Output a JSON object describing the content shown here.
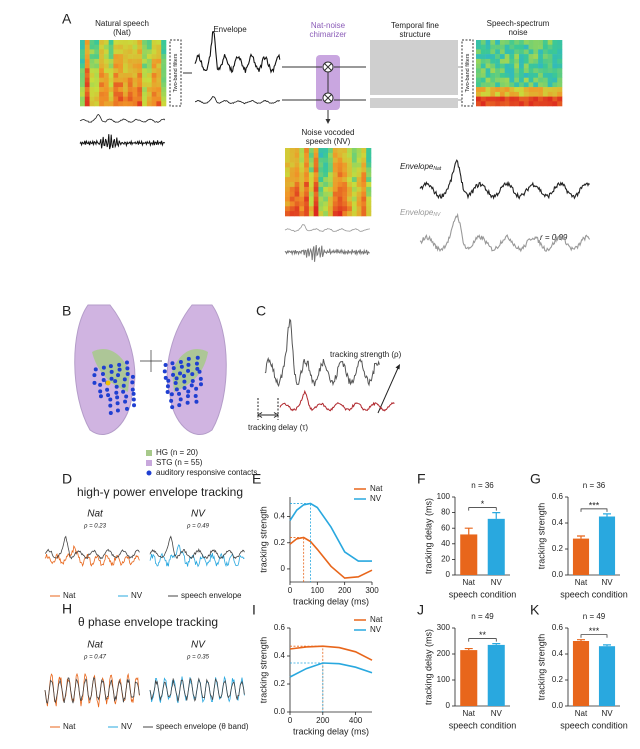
{
  "figure": {
    "A": {
      "label": "A",
      "nat_title": [
        "Natural speech",
        "(Nat)"
      ],
      "envelope_title": "Envelope",
      "chimerizer": [
        "Nat-noise",
        "chimarizer"
      ],
      "tfs_title": [
        "Temporal fine",
        "structure"
      ],
      "noise_title": [
        "Speech-spectrum",
        "noise"
      ],
      "filter_left": "Two-band filters",
      "filter_right": "Two-band filters",
      "nv_title": [
        "Noise vocoded",
        "speech (NV)"
      ],
      "env_nat": "Envelope",
      "env_nat_sub": "Nat",
      "env_nv": "Envelope",
      "env_nv_sub": "NV",
      "r_text": "r = 0.99"
    },
    "B": {
      "label": "B",
      "legend": [
        "HG (n = 20)",
        "STG (n = 55)",
        "auditory responsive contacts"
      ]
    },
    "C": {
      "label": "C",
      "strength": "tracking strength (ρ)",
      "delay": "tracking delay (τ)"
    },
    "D": {
      "label": "D",
      "title": "high-γ power envelope tracking",
      "nat": "Nat",
      "nv": "NV",
      "rho_nat": "ρ = 0.23",
      "rho_nv": "ρ = 0.49",
      "legend": [
        "Nat",
        "NV",
        "speech envelope"
      ]
    },
    "H": {
      "label": "H",
      "title": "θ phase envelope tracking",
      "nat": "Nat",
      "nv": "NV",
      "rho_nat": "ρ = 0.47",
      "rho_nv": "ρ = 0.35",
      "legend": [
        "Nat",
        "NV",
        "speech envelope (θ band)"
      ]
    }
  },
  "chart_data": [
    {
      "type": "line",
      "label": "E",
      "x_label": "tracking delay (ms)",
      "y_label": "tracking strength",
      "x": [
        0,
        25,
        50,
        75,
        100,
        150,
        200,
        250,
        300
      ],
      "xlim": [
        0,
        300
      ],
      "xticks": [
        0,
        100,
        200,
        300
      ],
      "ylim": [
        -0.1,
        0.55
      ],
      "yticks": [
        0,
        0.2,
        0.4
      ],
      "series": [
        {
          "name": "Nat",
          "color": "#e8661b",
          "values": [
            0.19,
            0.23,
            0.24,
            0.21,
            0.15,
            0.02,
            -0.07,
            -0.06,
            -0.01
          ]
        },
        {
          "name": "NV",
          "color": "#29a8df",
          "values": [
            0.37,
            0.45,
            0.49,
            0.5,
            0.47,
            0.32,
            0.13,
            0.06,
            0.06
          ]
        }
      ]
    },
    {
      "type": "bar",
      "label": "F",
      "n_label": "n = 36",
      "significance": "*",
      "x_label": "speech condition",
      "y_label": "tracking delay (ms)",
      "categories": [
        "Nat",
        "NV"
      ],
      "values": [
        52,
        72
      ],
      "errors": [
        8,
        8
      ],
      "colors": [
        "#e8661b",
        "#29a8df"
      ],
      "ylim": [
        0,
        100
      ],
      "yticks": [
        0,
        20,
        40,
        60,
        80,
        100
      ]
    },
    {
      "type": "bar",
      "label": "G",
      "n_label": "n = 36",
      "significance": "***",
      "x_label": "speech condition",
      "y_label": "tracking strength",
      "categories": [
        "Nat",
        "NV"
      ],
      "values": [
        0.28,
        0.45
      ],
      "errors": [
        0.02,
        0.02
      ],
      "colors": [
        "#e8661b",
        "#29a8df"
      ],
      "ylim": [
        0,
        0.6
      ],
      "yticks": [
        {
          "value": 0,
          "label": "0.0"
        },
        0.2,
        0.4,
        0.6
      ]
    },
    {
      "type": "line",
      "label": "I",
      "x_label": "tracking delay (ms)",
      "y_label": "tracking strength",
      "x": [
        0,
        100,
        200,
        300,
        400,
        500
      ],
      "xlim": [
        0,
        500
      ],
      "xticks": [
        0,
        200,
        400
      ],
      "ylim": [
        0,
        0.6
      ],
      "yticks": [
        {
          "value": 0,
          "label": "0.0"
        },
        0.2,
        0.4,
        0.6
      ],
      "series": [
        {
          "name": "Nat",
          "color": "#e8661b",
          "values": [
            0.45,
            0.465,
            0.47,
            0.46,
            0.43,
            0.37
          ]
        },
        {
          "name": "NV",
          "color": "#29a8df",
          "values": [
            0.25,
            0.31,
            0.35,
            0.345,
            0.32,
            0.28
          ]
        }
      ]
    },
    {
      "type": "bar",
      "label": "J",
      "n_label": "n = 49",
      "significance": "**",
      "x_label": "speech condition",
      "y_label": "tracking delay (ms)",
      "categories": [
        "Nat",
        "NV"
      ],
      "values": [
        215,
        235
      ],
      "errors": [
        6,
        5
      ],
      "colors": [
        "#e8661b",
        "#29a8df"
      ],
      "ylim": [
        0,
        300
      ],
      "yticks": [
        0,
        100,
        200,
        300
      ]
    },
    {
      "type": "bar",
      "label": "K",
      "n_label": "n = 49",
      "significance": "***",
      "x_label": "speech condition",
      "y_label": "tracking strength",
      "categories": [
        "Nat",
        "NV"
      ],
      "values": [
        0.5,
        0.46
      ],
      "errors": [
        0.01,
        0.01
      ],
      "colors": [
        "#e8661b",
        "#29a8df"
      ],
      "ylim": [
        0,
        0.6
      ],
      "yticks": [
        {
          "value": 0,
          "label": "0.0"
        },
        0.2,
        0.4,
        0.6
      ]
    }
  ]
}
